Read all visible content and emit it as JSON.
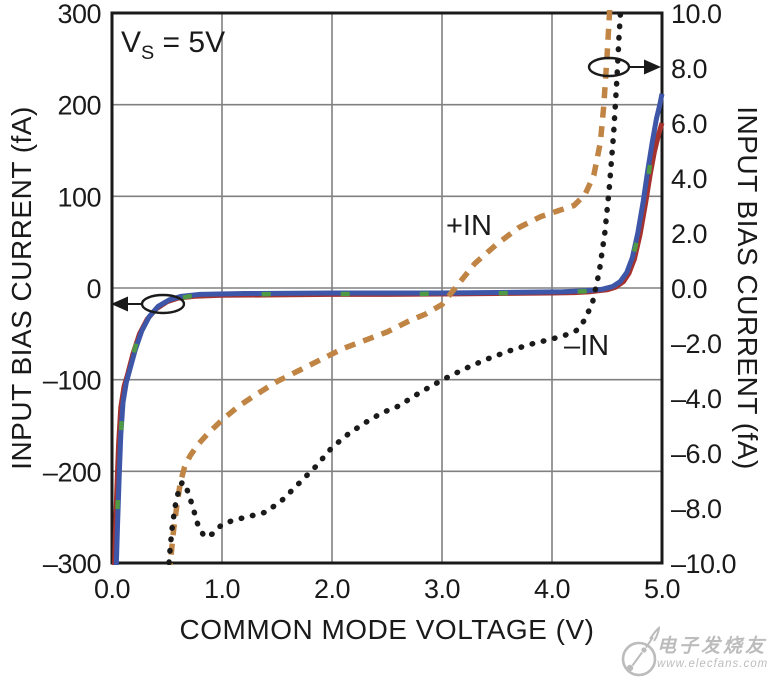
{
  "page": {
    "background": "#ffffff"
  },
  "annotation": {
    "pre": "V",
    "sub": "S",
    "post": " = 5V"
  },
  "curve_labels": {
    "plus_in": "+IN",
    "minus_in": "–IN"
  },
  "watermark": {
    "line1": "电子发烧友",
    "line2": "www.elecfans.com",
    "color": "#bcbcbc"
  },
  "chart_data": {
    "type": "line",
    "title": "",
    "grid": {
      "show": true,
      "color": "#808080",
      "frame_color": "#1a1a1a"
    },
    "x_axis": {
      "label": "COMMON MODE VOLTAGE (V)",
      "min": 0,
      "max": 5,
      "tick_values": [
        0,
        1,
        2,
        3,
        4,
        5
      ],
      "tick_labels": [
        "0.0",
        "1.0",
        "2.0",
        "3.0",
        "4.0",
        "5.0"
      ]
    },
    "y_left": {
      "label": "INPUT BIAS CURRENT (fA)",
      "min": -300,
      "max": 300,
      "tick_values": [
        300,
        200,
        100,
        0,
        -100,
        -200,
        -300
      ],
      "tick_labels": [
        "300",
        "200",
        "100",
        "0",
        "–100",
        "–200",
        "–300"
      ]
    },
    "y_right": {
      "label": "INPUT BIAS CURRENT (fA)",
      "min": -10,
      "max": 10,
      "tick_values": [
        10,
        8,
        6,
        4,
        2,
        0,
        -2,
        -4,
        -6,
        -8,
        -10
      ],
      "tick_labels": [
        "10.0",
        "8.0",
        "6.0",
        "4.0",
        "2.0",
        "0.0",
        "–2.0",
        "–4.0",
        "–6.0",
        "–8.0",
        "–10.0"
      ]
    },
    "series": [
      {
        "name": "input-bias-solid-red",
        "axis": "left",
        "style": "solid",
        "color": "#A6322E",
        "width": 5,
        "points": [
          [
            0.02,
            -320
          ],
          [
            0.03,
            -270
          ],
          [
            0.045,
            -215
          ],
          [
            0.06,
            -170
          ],
          [
            0.08,
            -130
          ],
          [
            0.11,
            -107
          ],
          [
            0.14,
            -95
          ],
          [
            0.19,
            -72
          ],
          [
            0.25,
            -50
          ],
          [
            0.32,
            -34
          ],
          [
            0.4,
            -23
          ],
          [
            0.5,
            -15
          ],
          [
            0.6,
            -11
          ],
          [
            0.75,
            -9
          ],
          [
            1,
            -8
          ],
          [
            1.5,
            -7.5
          ],
          [
            2,
            -7
          ],
          [
            2.5,
            -7
          ],
          [
            3,
            -6.5
          ],
          [
            3.5,
            -6
          ],
          [
            4,
            -5.5
          ],
          [
            4.2,
            -5
          ],
          [
            4.35,
            -4
          ],
          [
            4.5,
            -2
          ],
          [
            4.58,
            1
          ],
          [
            4.65,
            7
          ],
          [
            4.7,
            16
          ],
          [
            4.75,
            32
          ],
          [
            4.8,
            58
          ],
          [
            4.85,
            92
          ],
          [
            4.89,
            122
          ],
          [
            4.93,
            148
          ],
          [
            4.97,
            168
          ],
          [
            5,
            180
          ]
        ]
      },
      {
        "name": "input-bias-solid-blue",
        "axis": "left",
        "style": "solid",
        "color": "#3E56A8",
        "width": 5,
        "points": [
          [
            0.035,
            -320
          ],
          [
            0.05,
            -260
          ],
          [
            0.065,
            -205
          ],
          [
            0.08,
            -160
          ],
          [
            0.1,
            -125
          ],
          [
            0.13,
            -103
          ],
          [
            0.16,
            -90
          ],
          [
            0.21,
            -68
          ],
          [
            0.27,
            -47
          ],
          [
            0.34,
            -31
          ],
          [
            0.42,
            -20
          ],
          [
            0.52,
            -13
          ],
          [
            0.63,
            -9
          ],
          [
            0.8,
            -7
          ],
          [
            1.2,
            -6
          ],
          [
            2,
            -5.5
          ],
          [
            3,
            -5.5
          ],
          [
            3.8,
            -4.5
          ],
          [
            4.1,
            -4
          ],
          [
            4.3,
            -3
          ],
          [
            4.45,
            -1.5
          ],
          [
            4.55,
            1.5
          ],
          [
            4.62,
            7
          ],
          [
            4.68,
            17
          ],
          [
            4.73,
            33
          ],
          [
            4.78,
            60
          ],
          [
            4.83,
            95
          ],
          [
            4.87,
            128
          ],
          [
            4.91,
            158
          ],
          [
            4.95,
            185
          ],
          [
            4.98,
            200
          ],
          [
            5,
            212
          ]
        ]
      },
      {
        "name": "input-bias-green-dash",
        "axis": "left",
        "style": "sparse-dash",
        "color": "#4E9A47",
        "width": 4.5,
        "points": [
          [
            0.03,
            -300
          ],
          [
            0.05,
            -240
          ],
          [
            0.07,
            -185
          ],
          [
            0.09,
            -140
          ],
          [
            0.12,
            -108
          ],
          [
            0.17,
            -82
          ],
          [
            0.23,
            -57
          ],
          [
            0.3,
            -38
          ],
          [
            0.4,
            -23
          ],
          [
            0.52,
            -14
          ],
          [
            0.7,
            -9
          ],
          [
            1,
            -7
          ],
          [
            1.7,
            -6.5
          ],
          [
            2.5,
            -6.5
          ],
          [
            3.3,
            -6
          ],
          [
            4,
            -5
          ],
          [
            4.3,
            -3.5
          ],
          [
            4.5,
            -1.5
          ],
          [
            4.6,
            4
          ],
          [
            4.7,
            18
          ],
          [
            4.78,
            55
          ],
          [
            4.85,
            100
          ],
          [
            4.91,
            150
          ],
          [
            4.96,
            180
          ],
          [
            5,
            205
          ]
        ]
      },
      {
        "name": "plus-in-dashed",
        "axis": "right",
        "style": "dashed",
        "color": "#C08444",
        "width": 5.5,
        "points": [
          [
            0.52,
            -10.4
          ],
          [
            0.54,
            -9.6
          ],
          [
            0.56,
            -8.8
          ],
          [
            0.59,
            -7.9
          ],
          [
            0.62,
            -7.1
          ],
          [
            0.66,
            -6.5
          ],
          [
            0.71,
            -6.1
          ],
          [
            0.78,
            -5.7
          ],
          [
            0.87,
            -5.3
          ],
          [
            1,
            -4.8
          ],
          [
            1.15,
            -4.3
          ],
          [
            1.3,
            -3.9
          ],
          [
            1.5,
            -3.4
          ],
          [
            1.7,
            -3
          ],
          [
            1.9,
            -2.6
          ],
          [
            2.1,
            -2.2
          ],
          [
            2.3,
            -1.9
          ],
          [
            2.5,
            -1.6
          ],
          [
            2.7,
            -1.2
          ],
          [
            2.85,
            -0.95
          ],
          [
            3,
            -0.6
          ],
          [
            3.15,
            0.15
          ],
          [
            3.3,
            0.9
          ],
          [
            3.5,
            1.6
          ],
          [
            3.7,
            2.2
          ],
          [
            3.9,
            2.6
          ],
          [
            4.05,
            2.8
          ],
          [
            4.2,
            3
          ],
          [
            4.3,
            3.4
          ],
          [
            4.38,
            4.1
          ],
          [
            4.44,
            5.3
          ],
          [
            4.47,
            6.6
          ],
          [
            4.5,
            8.4
          ],
          [
            4.53,
            10.5
          ]
        ]
      },
      {
        "name": "minus-in-dotted",
        "axis": "right",
        "style": "dotted",
        "color": "#1A1A1A",
        "width": 5.5,
        "points": [
          [
            0.51,
            -10.4
          ],
          [
            0.53,
            -9.4
          ],
          [
            0.55,
            -8.6
          ],
          [
            0.58,
            -7.8
          ],
          [
            0.61,
            -7.3
          ],
          [
            0.64,
            -7.05
          ],
          [
            0.68,
            -7.3
          ],
          [
            0.73,
            -7.9
          ],
          [
            0.78,
            -8.6
          ],
          [
            0.84,
            -9.05
          ],
          [
            0.91,
            -8.95
          ],
          [
            1,
            -8.6
          ],
          [
            1.1,
            -8.45
          ],
          [
            1.25,
            -8.3
          ],
          [
            1.4,
            -8.15
          ],
          [
            1.55,
            -7.7
          ],
          [
            1.7,
            -7.1
          ],
          [
            1.85,
            -6.5
          ],
          [
            2,
            -5.8
          ],
          [
            2.15,
            -5.3
          ],
          [
            2.3,
            -4.9
          ],
          [
            2.45,
            -4.55
          ],
          [
            2.6,
            -4.3
          ],
          [
            2.8,
            -3.8
          ],
          [
            3,
            -3.35
          ],
          [
            3.2,
            -2.95
          ],
          [
            3.4,
            -2.6
          ],
          [
            3.6,
            -2.3
          ],
          [
            3.8,
            -2.05
          ],
          [
            3.95,
            -1.9
          ],
          [
            4.1,
            -1.75
          ],
          [
            4.22,
            -1.55
          ],
          [
            4.3,
            -1.15
          ],
          [
            4.37,
            -0.5
          ],
          [
            4.43,
            0.6
          ],
          [
            4.48,
            2
          ],
          [
            4.52,
            3.6
          ],
          [
            4.56,
            5.6
          ],
          [
            4.59,
            7.6
          ],
          [
            4.61,
            9.2
          ],
          [
            4.63,
            10.5
          ]
        ]
      }
    ],
    "callouts": [
      {
        "name": "left-axis-callout",
        "ellipse": [
          163,
          304,
          21,
          9
        ],
        "line_from": [
          142,
          304
        ],
        "line_to": [
          128,
          304
        ],
        "arrow_tip": [
          111,
          304
        ],
        "dir": "left"
      },
      {
        "name": "right-axis-callout",
        "ellipse": [
          609,
          67,
          20,
          9
        ],
        "line_from": [
          629,
          67
        ],
        "line_to": [
          645,
          67
        ],
        "arrow_tip": [
          661,
          67
        ],
        "dir": "right"
      }
    ]
  }
}
